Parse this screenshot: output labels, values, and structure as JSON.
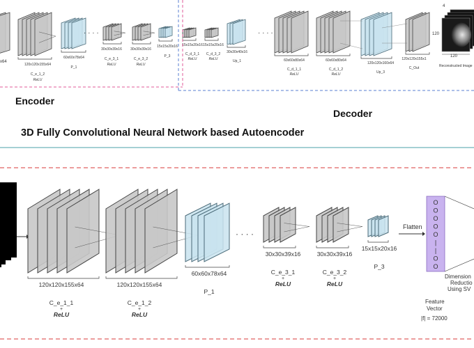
{
  "top": {
    "title": "3D Fully Convolutional Neural Network based Autoencoder",
    "encoder_label": "Encoder",
    "decoder_label": "Decoder",
    "enc_layers": [
      {
        "dims": "120x120x155x64",
        "name": "C_e_1_2",
        "act": "ReLU"
      },
      {
        "dims": "60x60x78x64",
        "name": "P_1",
        "act": ""
      },
      {
        "dims": "30x30x39x16",
        "name": "C_e_3_1",
        "act": "ReLU"
      },
      {
        "dims": "30x30x39x16",
        "name": "C_e_3_2",
        "act": "ReLU"
      },
      {
        "dims": "15x15x20x16",
        "name": "P_3",
        "act": ""
      }
    ],
    "dec_layers": [
      {
        "dims": "15x15x20x16",
        "name": "C_d_3_1",
        "act": "ReLU"
      },
      {
        "dims": "15x15x20x16",
        "name": "C_d_3_2",
        "act": "ReLU"
      },
      {
        "dims": "30x30x40x16",
        "name": "Up_1",
        "act": ""
      },
      {
        "dims": "60x60x80x64",
        "name": "C_d_1_1",
        "act": "ReLU"
      },
      {
        "dims": "60x60x80x64",
        "name": "C_d_1_2",
        "act": "ReLU"
      },
      {
        "dims": "120x120x160x64",
        "name": "Up_3",
        "act": ""
      },
      {
        "dims": "120x120x155x1",
        "name": "C_Out",
        "act": ""
      }
    ],
    "output_dim_4": "4",
    "output_dim_120a": "120",
    "output_dim_120b": "120",
    "output_caption": "Reconstructed Image",
    "left_partial": "x64"
  },
  "bottom": {
    "layers": [
      {
        "dims": "120x120x155x64",
        "name": "C_e_1_1",
        "plus": "+",
        "act": "ReLU"
      },
      {
        "dims": "120x120x155x64",
        "name": "C_e_1_2",
        "plus": "+",
        "act": "ReLU"
      },
      {
        "dims": "60x60x78x64",
        "name": "P_1",
        "plus": "",
        "act": ""
      },
      {
        "dims": "30x30x39x16",
        "name": "C_e_3_1",
        "plus": "+",
        "act": "ReLU"
      },
      {
        "dims": "30x30x39x16",
        "name": "C_e_3_2",
        "plus": "+",
        "act": "ReLU"
      },
      {
        "dims": "15x15x20x16",
        "name": "P_3",
        "plus": "",
        "act": ""
      }
    ],
    "flatten_label": "Flatten",
    "feature_vector_label_1": "Feature",
    "feature_vector_label_2": "Vector",
    "feature_size": "|f| = 72000",
    "dimred_line1": "Dimension",
    "dimred_line2": "Reductio",
    "dimred_line3": "Using SV",
    "vector_glyphs": [
      "O",
      "O",
      "O",
      "O",
      "O",
      "|",
      "|",
      "O",
      "O"
    ]
  },
  "colors": {
    "gray_fill": "#c8c8c8",
    "gray_stroke": "#444444",
    "blue_fill": "#c9e3ee",
    "blue_stroke": "#4a6a78",
    "purple": "#c9b3ef",
    "red_dash": "#d9383a",
    "pink_dash": "#e05a9a",
    "blue_dash": "#5a7fd0",
    "teal_line": "#4aa0a8"
  }
}
